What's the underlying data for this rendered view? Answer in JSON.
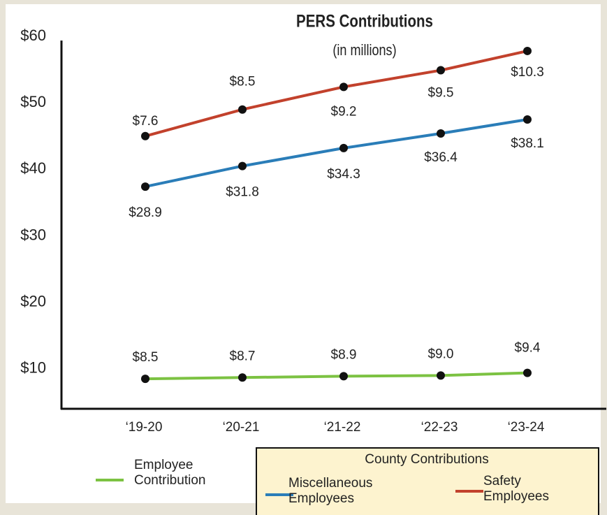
{
  "chart_data": {
    "type": "stacked_line",
    "title": "PERS Contributions",
    "subtitle": "(in millions)",
    "categories": [
      "‘19-20",
      "‘20-21",
      "‘21-22",
      "‘22-23",
      "‘23-24"
    ],
    "series": [
      {
        "name": "Employee Contribution",
        "color": "#7cc242",
        "values": [
          8.5,
          8.7,
          8.9,
          9.0,
          9.4
        ],
        "value_labels": [
          "$8.5",
          "$8.7",
          "$8.9",
          "$9.0",
          "$9.4"
        ]
      },
      {
        "name": "Miscellaneous Employees",
        "color": "#2a7db8",
        "values": [
          28.9,
          31.8,
          34.3,
          36.4,
          38.1
        ],
        "value_labels": [
          "$28.9",
          "$31.8",
          "$34.3",
          "$36.4",
          "$38.1"
        ]
      },
      {
        "name": "Safety Employees",
        "color": "#c2412c",
        "values": [
          7.6,
          8.5,
          9.2,
          9.5,
          10.3
        ],
        "value_labels": [
          "$7.6",
          "$8.5",
          "$9.2",
          "$9.5",
          "$10.3"
        ]
      }
    ],
    "legend_group_title": "County Contributions",
    "legend": "bottom",
    "ylim": [
      4,
      60
    ],
    "yticks": [
      {
        "value": 10,
        "label": "$10"
      },
      {
        "value": 20,
        "label": "$20"
      },
      {
        "value": 30,
        "label": "$30"
      },
      {
        "value": 40,
        "label": "$40"
      },
      {
        "value": 50,
        "label": "$50"
      },
      {
        "value": 60,
        "label": "$60"
      }
    ],
    "grid": false
  }
}
